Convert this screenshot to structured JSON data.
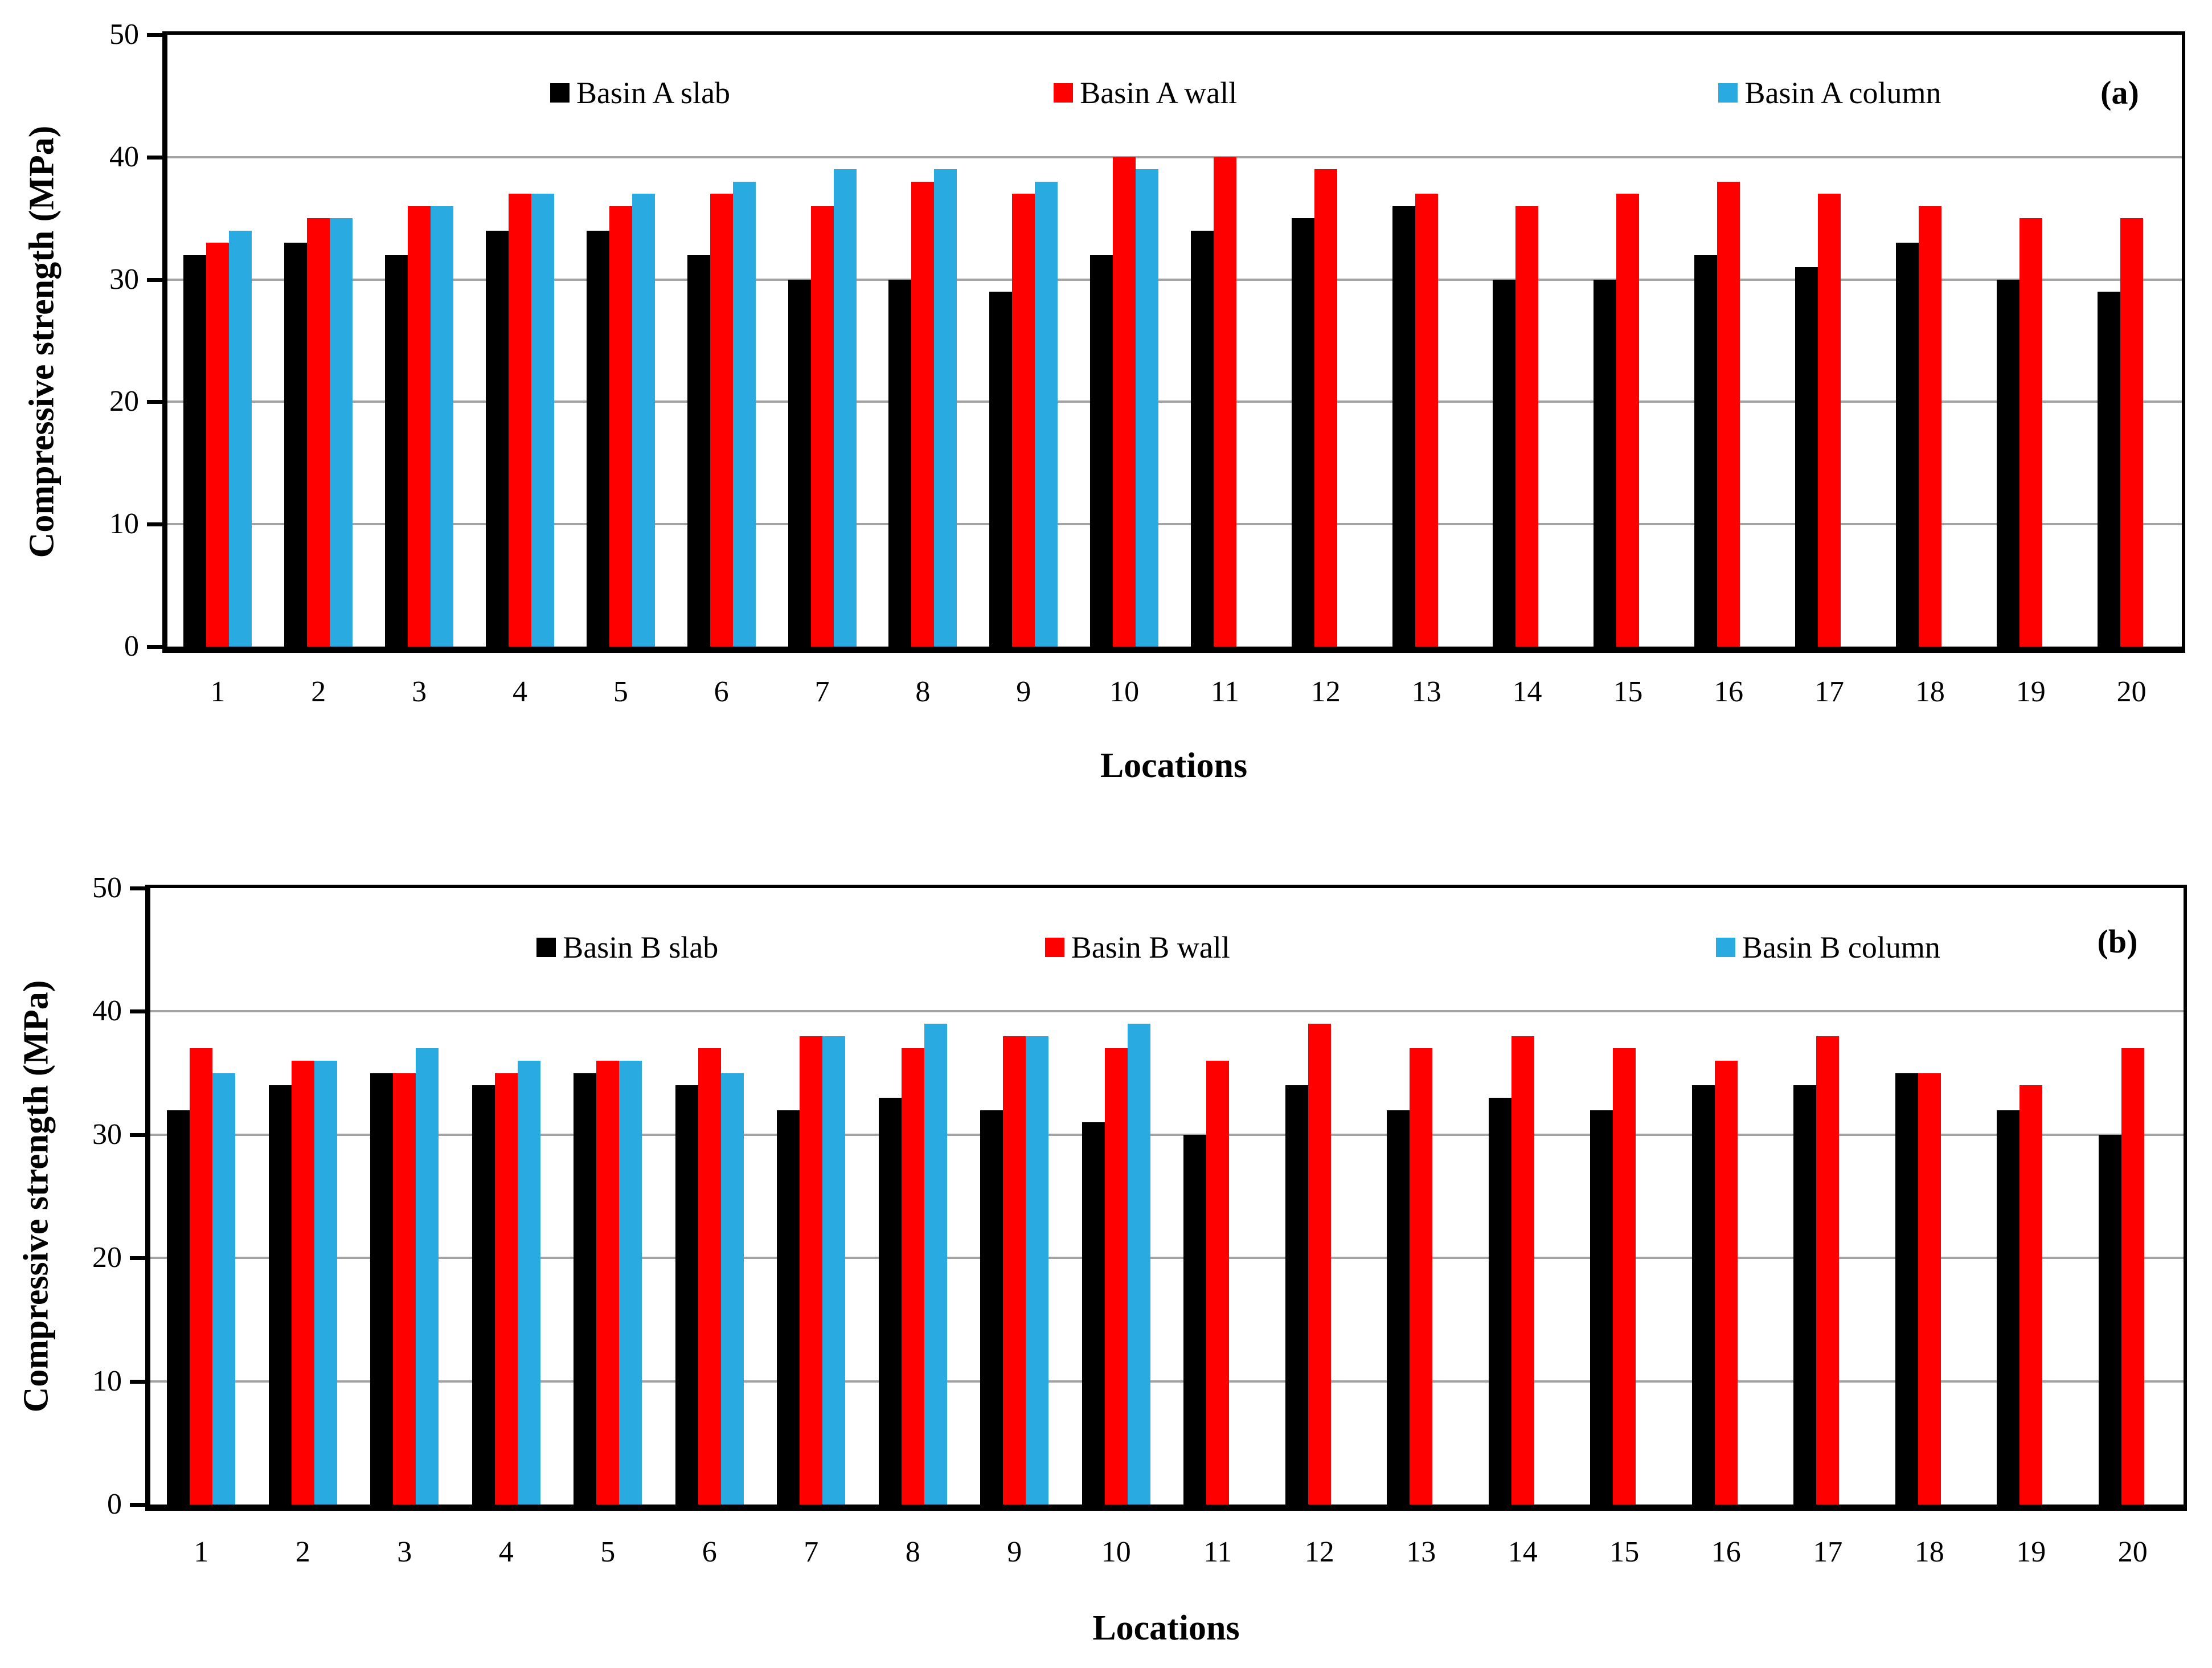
{
  "chart_data": [
    {
      "type": "bar",
      "panel_label": "(a)",
      "xlabel": "Locations",
      "ylabel": "Compressive strength (MPa)",
      "ylim": [
        0,
        50
      ],
      "yticks": [
        0,
        10,
        20,
        30,
        40,
        50
      ],
      "grid": "horizontal-major",
      "legend_position": "top-inside",
      "categories": [
        "1",
        "2",
        "3",
        "4",
        "5",
        "6",
        "7",
        "8",
        "9",
        "10",
        "11",
        "12",
        "13",
        "14",
        "15",
        "16",
        "17",
        "18",
        "19",
        "20"
      ],
      "series": [
        {
          "name": "Basin A slab",
          "color": "#000000",
          "values": [
            32,
            33,
            32,
            34,
            34,
            32,
            30,
            30,
            29,
            32,
            34,
            35,
            36,
            30,
            30,
            32,
            31,
            33,
            30,
            29
          ]
        },
        {
          "name": "Basin A wall",
          "color": "#fe0000",
          "values": [
            33,
            35,
            36,
            37,
            36,
            37,
            36,
            38,
            37,
            40,
            40,
            39,
            37,
            36,
            37,
            38,
            37,
            36,
            35,
            35
          ]
        },
        {
          "name": "Basin A column",
          "color": "#29abe2",
          "values": [
            34,
            35,
            36,
            37,
            37,
            38,
            39,
            39,
            38,
            39,
            null,
            null,
            null,
            null,
            null,
            null,
            null,
            null,
            null,
            null
          ]
        }
      ]
    },
    {
      "type": "bar",
      "panel_label": "(b)",
      "xlabel": "Locations",
      "ylabel": "Compressive strength (MPa)",
      "ylim": [
        0,
        50
      ],
      "yticks": [
        0,
        10,
        20,
        30,
        40,
        50
      ],
      "grid": "horizontal-major",
      "legend_position": "top-inside",
      "categories": [
        "1",
        "2",
        "3",
        "4",
        "5",
        "6",
        "7",
        "8",
        "9",
        "10",
        "11",
        "12",
        "13",
        "14",
        "15",
        "16",
        "17",
        "18",
        "19",
        "20"
      ],
      "series": [
        {
          "name": "Basin B slab",
          "color": "#000000",
          "values": [
            32,
            34,
            35,
            34,
            35,
            34,
            32,
            33,
            32,
            31,
            30,
            34,
            32,
            33,
            32,
            34,
            34,
            35,
            32,
            30
          ]
        },
        {
          "name": "Basin B wall",
          "color": "#fe0000",
          "values": [
            37,
            36,
            35,
            35,
            36,
            37,
            38,
            37,
            38,
            37,
            36,
            39,
            37,
            38,
            37,
            36,
            38,
            35,
            34,
            37
          ]
        },
        {
          "name": "Basin B column",
          "color": "#29abe2",
          "values": [
            35,
            36,
            37,
            36,
            36,
            35,
            38,
            39,
            38,
            39,
            null,
            null,
            null,
            null,
            null,
            null,
            null,
            null,
            null,
            null
          ]
        }
      ]
    }
  ],
  "style": {
    "grid_color": "#a3a3a3",
    "axis_color": "#000000",
    "background": "#ffffff"
  }
}
